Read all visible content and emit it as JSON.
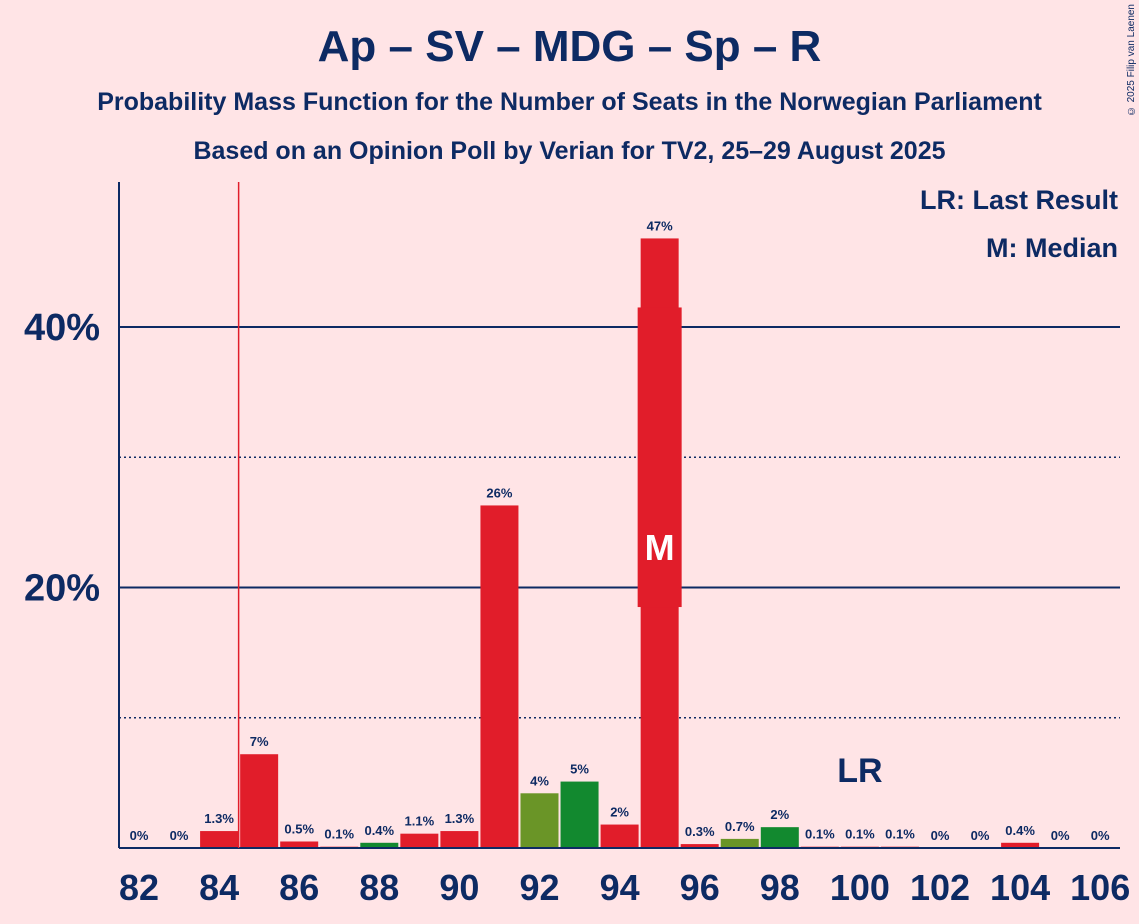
{
  "copyright": "© 2025 Filip van Laenen",
  "legend": {
    "last_result": "LR: Last Result",
    "median": "M: Median"
  },
  "markers": {
    "median_letter": "M",
    "last_result_letter": "LR",
    "median_seat": 95,
    "last_result_seat": 100,
    "last_result_line_seat": 84.5
  },
  "colors": {
    "background": "#ffe4e6",
    "text": "#0d2a63",
    "red": "#e11d2a",
    "green": "#12892f",
    "olive": "#6a9527",
    "last_result_line": "#e11d2a"
  },
  "chart_data": {
    "type": "bar",
    "title": "Ap – SV – MDG – Sp – R",
    "subtitle": "Probability Mass Function for the Number of Seats in the Norwegian Parliament",
    "subtitle2": "Based on an Opinion Poll by Verian for TV2, 25–29 August 2025",
    "xlabel": "",
    "ylabel": "",
    "ylim": [
      0,
      51
    ],
    "y_ticks": [
      {
        "value": 20,
        "label": "20%"
      },
      {
        "value": 40,
        "label": "40%"
      }
    ],
    "y_dotted": [
      10,
      30
    ],
    "x_tick_labels": [
      "82",
      "84",
      "86",
      "88",
      "90",
      "92",
      "94",
      "96",
      "98",
      "100",
      "102",
      "104",
      "106"
    ],
    "bars": [
      {
        "seats": 82,
        "value": 0,
        "label": "0%",
        "color": "red"
      },
      {
        "seats": 83,
        "value": 0,
        "label": "0%",
        "color": "red"
      },
      {
        "seats": 84,
        "value": 1.3,
        "label": "1.3%",
        "color": "red"
      },
      {
        "seats": 85,
        "value": 7.2,
        "label": "7%",
        "color": "red"
      },
      {
        "seats": 86,
        "value": 0.5,
        "label": "0.5%",
        "color": "red"
      },
      {
        "seats": 87,
        "value": 0.1,
        "label": "0.1%",
        "color": "red"
      },
      {
        "seats": 88,
        "value": 0.4,
        "label": "0.4%",
        "color": "green"
      },
      {
        "seats": 89,
        "value": 1.1,
        "label": "1.1%",
        "color": "red"
      },
      {
        "seats": 90,
        "value": 1.3,
        "label": "1.3%",
        "color": "red"
      },
      {
        "seats": 91,
        "value": 26.3,
        "label": "26%",
        "color": "red"
      },
      {
        "seats": 92,
        "value": 4.2,
        "label": "4%",
        "color": "olive"
      },
      {
        "seats": 93,
        "value": 5.1,
        "label": "5%",
        "color": "green"
      },
      {
        "seats": 94,
        "value": 1.8,
        "label": "2%",
        "color": "red"
      },
      {
        "seats": 95,
        "value": 46.8,
        "label": "47%",
        "color": "red"
      },
      {
        "seats": 96,
        "value": 0.3,
        "label": "0.3%",
        "color": "red"
      },
      {
        "seats": 97,
        "value": 0.7,
        "label": "0.7%",
        "color": "olive"
      },
      {
        "seats": 98,
        "value": 1.6,
        "label": "2%",
        "color": "green"
      },
      {
        "seats": 99,
        "value": 0.1,
        "label": "0.1%",
        "color": "red"
      },
      {
        "seats": 100,
        "value": 0.1,
        "label": "0.1%",
        "color": "red"
      },
      {
        "seats": 101,
        "value": 0.1,
        "label": "0.1%",
        "color": "red"
      },
      {
        "seats": 102,
        "value": 0,
        "label": "0%",
        "color": "red"
      },
      {
        "seats": 103,
        "value": 0,
        "label": "0%",
        "color": "red"
      },
      {
        "seats": 104,
        "value": 0.4,
        "label": "0.4%",
        "color": "red"
      },
      {
        "seats": 105,
        "value": 0,
        "label": "0%",
        "color": "red"
      },
      {
        "seats": 106,
        "value": 0,
        "label": "0%",
        "color": "red"
      }
    ]
  }
}
